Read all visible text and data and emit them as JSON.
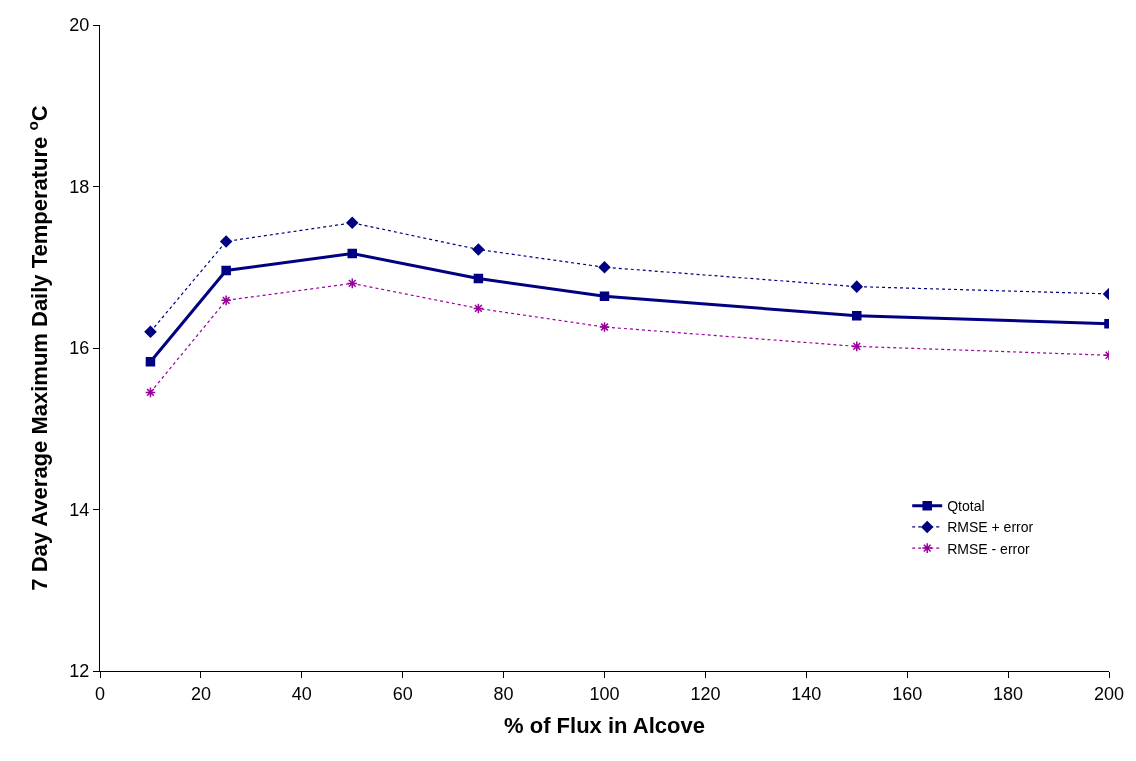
{
  "chart_data": {
    "type": "line",
    "xlabel": "% of Flux in Alcove",
    "ylabel": "7 Day Average Maximum Daily Temperature $^{o}$C",
    "x": [
      10,
      25,
      50,
      75,
      100,
      150,
      200
    ],
    "series": [
      {
        "name": "Qtotal",
        "color": "#000080",
        "marker": "square",
        "line_style": "solid",
        "values": [
          15.83,
          16.96,
          17.17,
          16.86,
          16.64,
          16.4,
          16.3
        ]
      },
      {
        "name": "RMSE + error",
        "color": "#000080",
        "marker": "diamond",
        "line_style": "dotted",
        "values": [
          16.2,
          17.32,
          17.55,
          17.22,
          17.0,
          16.76,
          16.67
        ]
      },
      {
        "name": "RMSE - error",
        "color": "#990099",
        "marker": "cross",
        "line_style": "dotted",
        "values": [
          15.45,
          16.59,
          16.8,
          16.49,
          16.26,
          16.02,
          15.91
        ]
      }
    ],
    "xlim": [
      0,
      200
    ],
    "xticks": [
      0,
      20,
      40,
      60,
      80,
      100,
      120,
      140,
      160,
      180,
      200
    ],
    "ylim": [
      12,
      20
    ],
    "yticks": [
      12,
      14,
      16,
      18,
      20
    ],
    "grid": false,
    "legend": "bottom right"
  }
}
